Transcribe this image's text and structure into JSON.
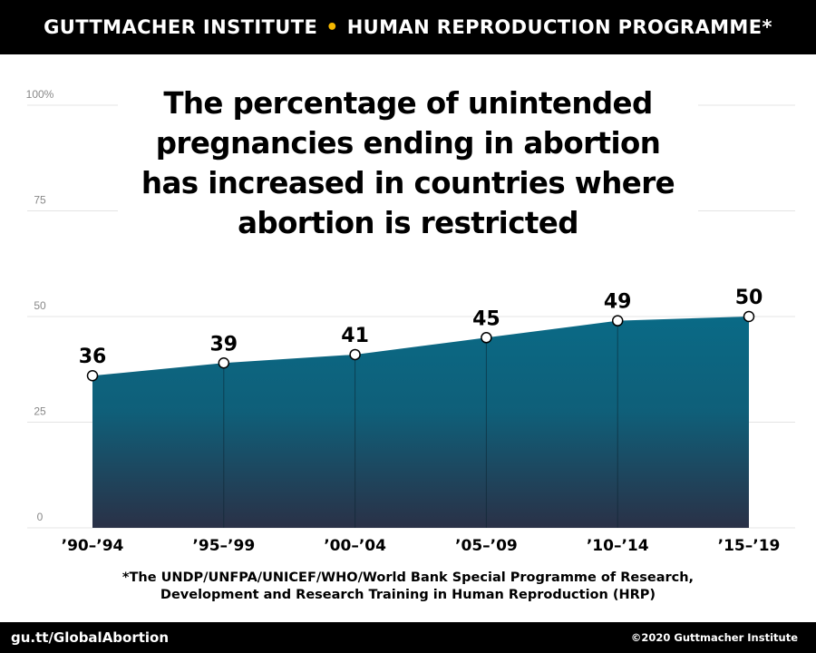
{
  "header": {
    "left": "GUTTMACHER INSTITUTE",
    "separator": "•",
    "right": "HUMAN REPRODUCTION PROGRAMME*"
  },
  "headline": {
    "line1": "The percentage of unintended",
    "line2": "pregnancies ending in abortion",
    "line3": "has increased in countries where",
    "line4": "abortion is restricted"
  },
  "chart_data": {
    "type": "area",
    "title": "The percentage of unintended pregnancies ending in abortion has increased in countries where abortion is restricted",
    "categories": [
      "’90–’94",
      "’95–’99",
      "’00–’04",
      "’05–’09",
      "’10–’14",
      "’15–’19"
    ],
    "values": [
      36,
      39,
      41,
      45,
      49,
      50
    ],
    "data_labels": [
      "36",
      "39",
      "41",
      "45",
      "49",
      "50"
    ],
    "ylim": [
      0,
      100
    ],
    "yticks": [
      0,
      25,
      50,
      75,
      100
    ],
    "ytick_labels": [
      "0",
      "25",
      "50",
      "75",
      "100%"
    ],
    "xlabel": "",
    "ylabel": "",
    "grid": true,
    "colors": {
      "fill_top": "#0a6a86",
      "fill_mid": "#0f5f79",
      "fill_bottom": "#2a3147",
      "marker_stroke": "#000000",
      "grid": "#e4e4e4",
      "tick_text": "#888888"
    }
  },
  "footnote": {
    "line1": "*The UNDP/UNFPA/UNICEF/WHO/World Bank Special Programme of Research,",
    "line2": "Development and Research Training in Human Reproduction (HRP)"
  },
  "footer": {
    "url": "gu.tt/GlobalAbortion",
    "copyright": "©2020 Guttmacher Institute"
  }
}
